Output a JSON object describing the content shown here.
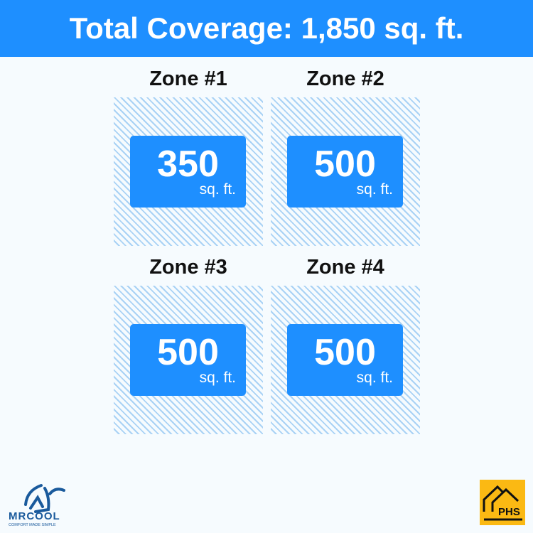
{
  "header": {
    "title": "Total Coverage: 1,850 sq. ft."
  },
  "zones": [
    {
      "label": "Zone #1",
      "value": "350",
      "unit": "sq. ft."
    },
    {
      "label": "Zone #2",
      "value": "500",
      "unit": "sq. ft."
    },
    {
      "label": "Zone #3",
      "value": "500",
      "unit": "sq. ft."
    },
    {
      "label": "Zone #4",
      "value": "500",
      "unit": "sq. ft."
    }
  ],
  "logos": {
    "left": "MRCOOL",
    "left_tagline": "COMFORT MADE SIMPLE",
    "right": "PHS"
  },
  "colors": {
    "accent": "#1e8fff",
    "hatch": "#a9d2f5",
    "phs": "#fbb913",
    "mrcool": "#1a5a9c"
  }
}
